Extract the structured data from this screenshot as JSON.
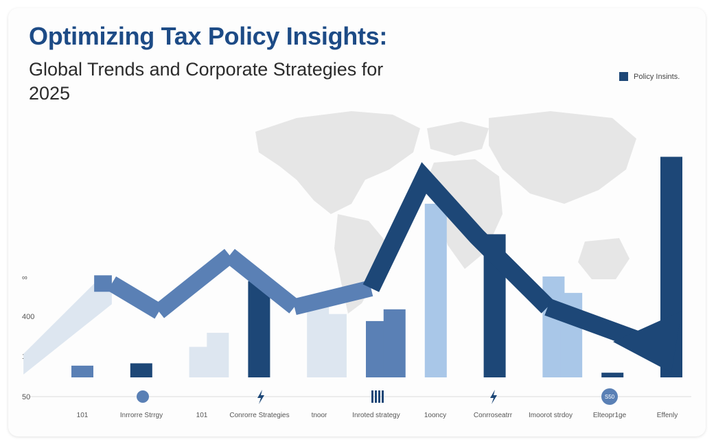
{
  "title": "Optimizing Tax Policy Insights:",
  "subtitle": "Global Trends and Corporate Strategies for 2025",
  "legend": {
    "label": "Policy Insints.",
    "color": "#1d4777"
  },
  "colors": {
    "dark": "#1d4777",
    "mid": "#5a80b5",
    "light": "#a9c7e8",
    "pale": "#dde6f0",
    "map": "#e6e6e6"
  },
  "icons": [
    "coin-icon",
    "lightning-icon",
    "columns-icon",
    "lightning-icon",
    "badge-icon"
  ],
  "icon_badge_text": "S50",
  "chart_data": {
    "type": "bar",
    "title": "Optimizing Tax Policy Insights:",
    "subtitle": "Global Trends and Corporate Strategies for 2025",
    "legend": [
      "Policy Insints."
    ],
    "legend_position": "top-right",
    "y_ticks": [
      "50",
      "10",
      "400",
      "∞"
    ],
    "x_ticks": [
      "101",
      "Inrrorre Strrgy",
      "101",
      "Conrorre Strategies",
      "tnoor",
      "Inroted strategy",
      "1ooncy",
      "Conrroseatrr",
      "Imoorot strdoy",
      "Elteopr1ge",
      "Effenly"
    ],
    "grid": false,
    "bars": [
      {
        "position": 1,
        "value": 5,
        "shade": "mid"
      },
      {
        "position": 2,
        "value": 6,
        "shade": "dark"
      },
      {
        "position": 3,
        "value": 13,
        "shade": "pale"
      },
      {
        "position": 3.3,
        "value": 19,
        "shade": "pale"
      },
      {
        "position": 4,
        "value": 41,
        "shade": "dark"
      },
      {
        "position": 5,
        "value": 32,
        "shade": "pale"
      },
      {
        "position": 5.3,
        "value": 27,
        "shade": "pale"
      },
      {
        "position": 6,
        "value": 24,
        "shade": "mid"
      },
      {
        "position": 6.3,
        "value": 29,
        "shade": "mid"
      },
      {
        "position": 7,
        "value": 74,
        "shade": "light"
      },
      {
        "position": 8,
        "value": 61,
        "shade": "dark"
      },
      {
        "position": 9,
        "value": 43,
        "shade": "light"
      },
      {
        "position": 9.3,
        "value": 36,
        "shade": "light"
      },
      {
        "position": 10,
        "value": 2,
        "shade": "dark"
      },
      {
        "position": 11,
        "value": 94,
        "shade": "dark"
      }
    ],
    "trend_line": {
      "x": [
        0,
        1.2,
        1.5,
        2.3,
        3.5,
        4.6,
        5.9,
        6.8,
        7.7,
        8.9,
        11
      ],
      "y": [
        10,
        40,
        40,
        28,
        52,
        30,
        38,
        85,
        60,
        30,
        2
      ]
    },
    "ylim": [
      0,
      100
    ]
  }
}
